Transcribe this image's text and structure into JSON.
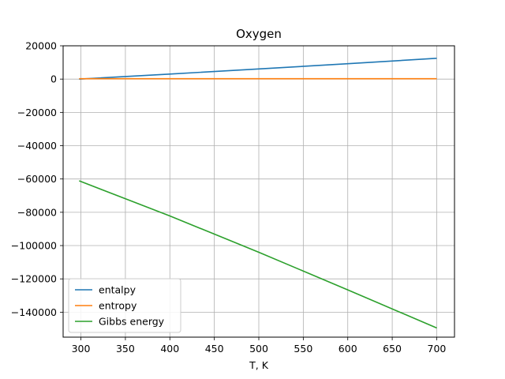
{
  "chart_data": {
    "type": "line",
    "title": "Oxygen",
    "xlabel": "T, K",
    "ylabel": "",
    "xlim": [
      280,
      720
    ],
    "ylim": [
      -155000,
      20000
    ],
    "xticks": [
      300,
      350,
      400,
      450,
      500,
      550,
      600,
      650,
      700
    ],
    "yticks": [
      20000,
      0,
      -20000,
      -40000,
      -60000,
      -80000,
      -100000,
      -120000,
      -140000
    ],
    "ytick_labels": [
      "20000",
      "0",
      "−20000",
      "−40000",
      "−60000",
      "−80000",
      "−100000",
      "−120000",
      "−140000"
    ],
    "grid": true,
    "legend_position": "lower-left",
    "series": [
      {
        "name": "entalpy",
        "color": "#1f77b4",
        "x": [
          298,
          400,
          500,
          600,
          700
        ],
        "y": [
          0,
          3000,
          6100,
          9250,
          12500
        ]
      },
      {
        "name": "entropy",
        "color": "#ff7f0e",
        "x": [
          298,
          400,
          500,
          600,
          700
        ],
        "y": [
          205,
          213,
          220,
          226,
          231
        ]
      },
      {
        "name": "Gibbs energy",
        "color": "#2ca02c",
        "x": [
          298,
          400,
          500,
          600,
          700
        ],
        "y": [
          -61100,
          -82200,
          -104000,
          -126600,
          -149500
        ]
      }
    ]
  }
}
